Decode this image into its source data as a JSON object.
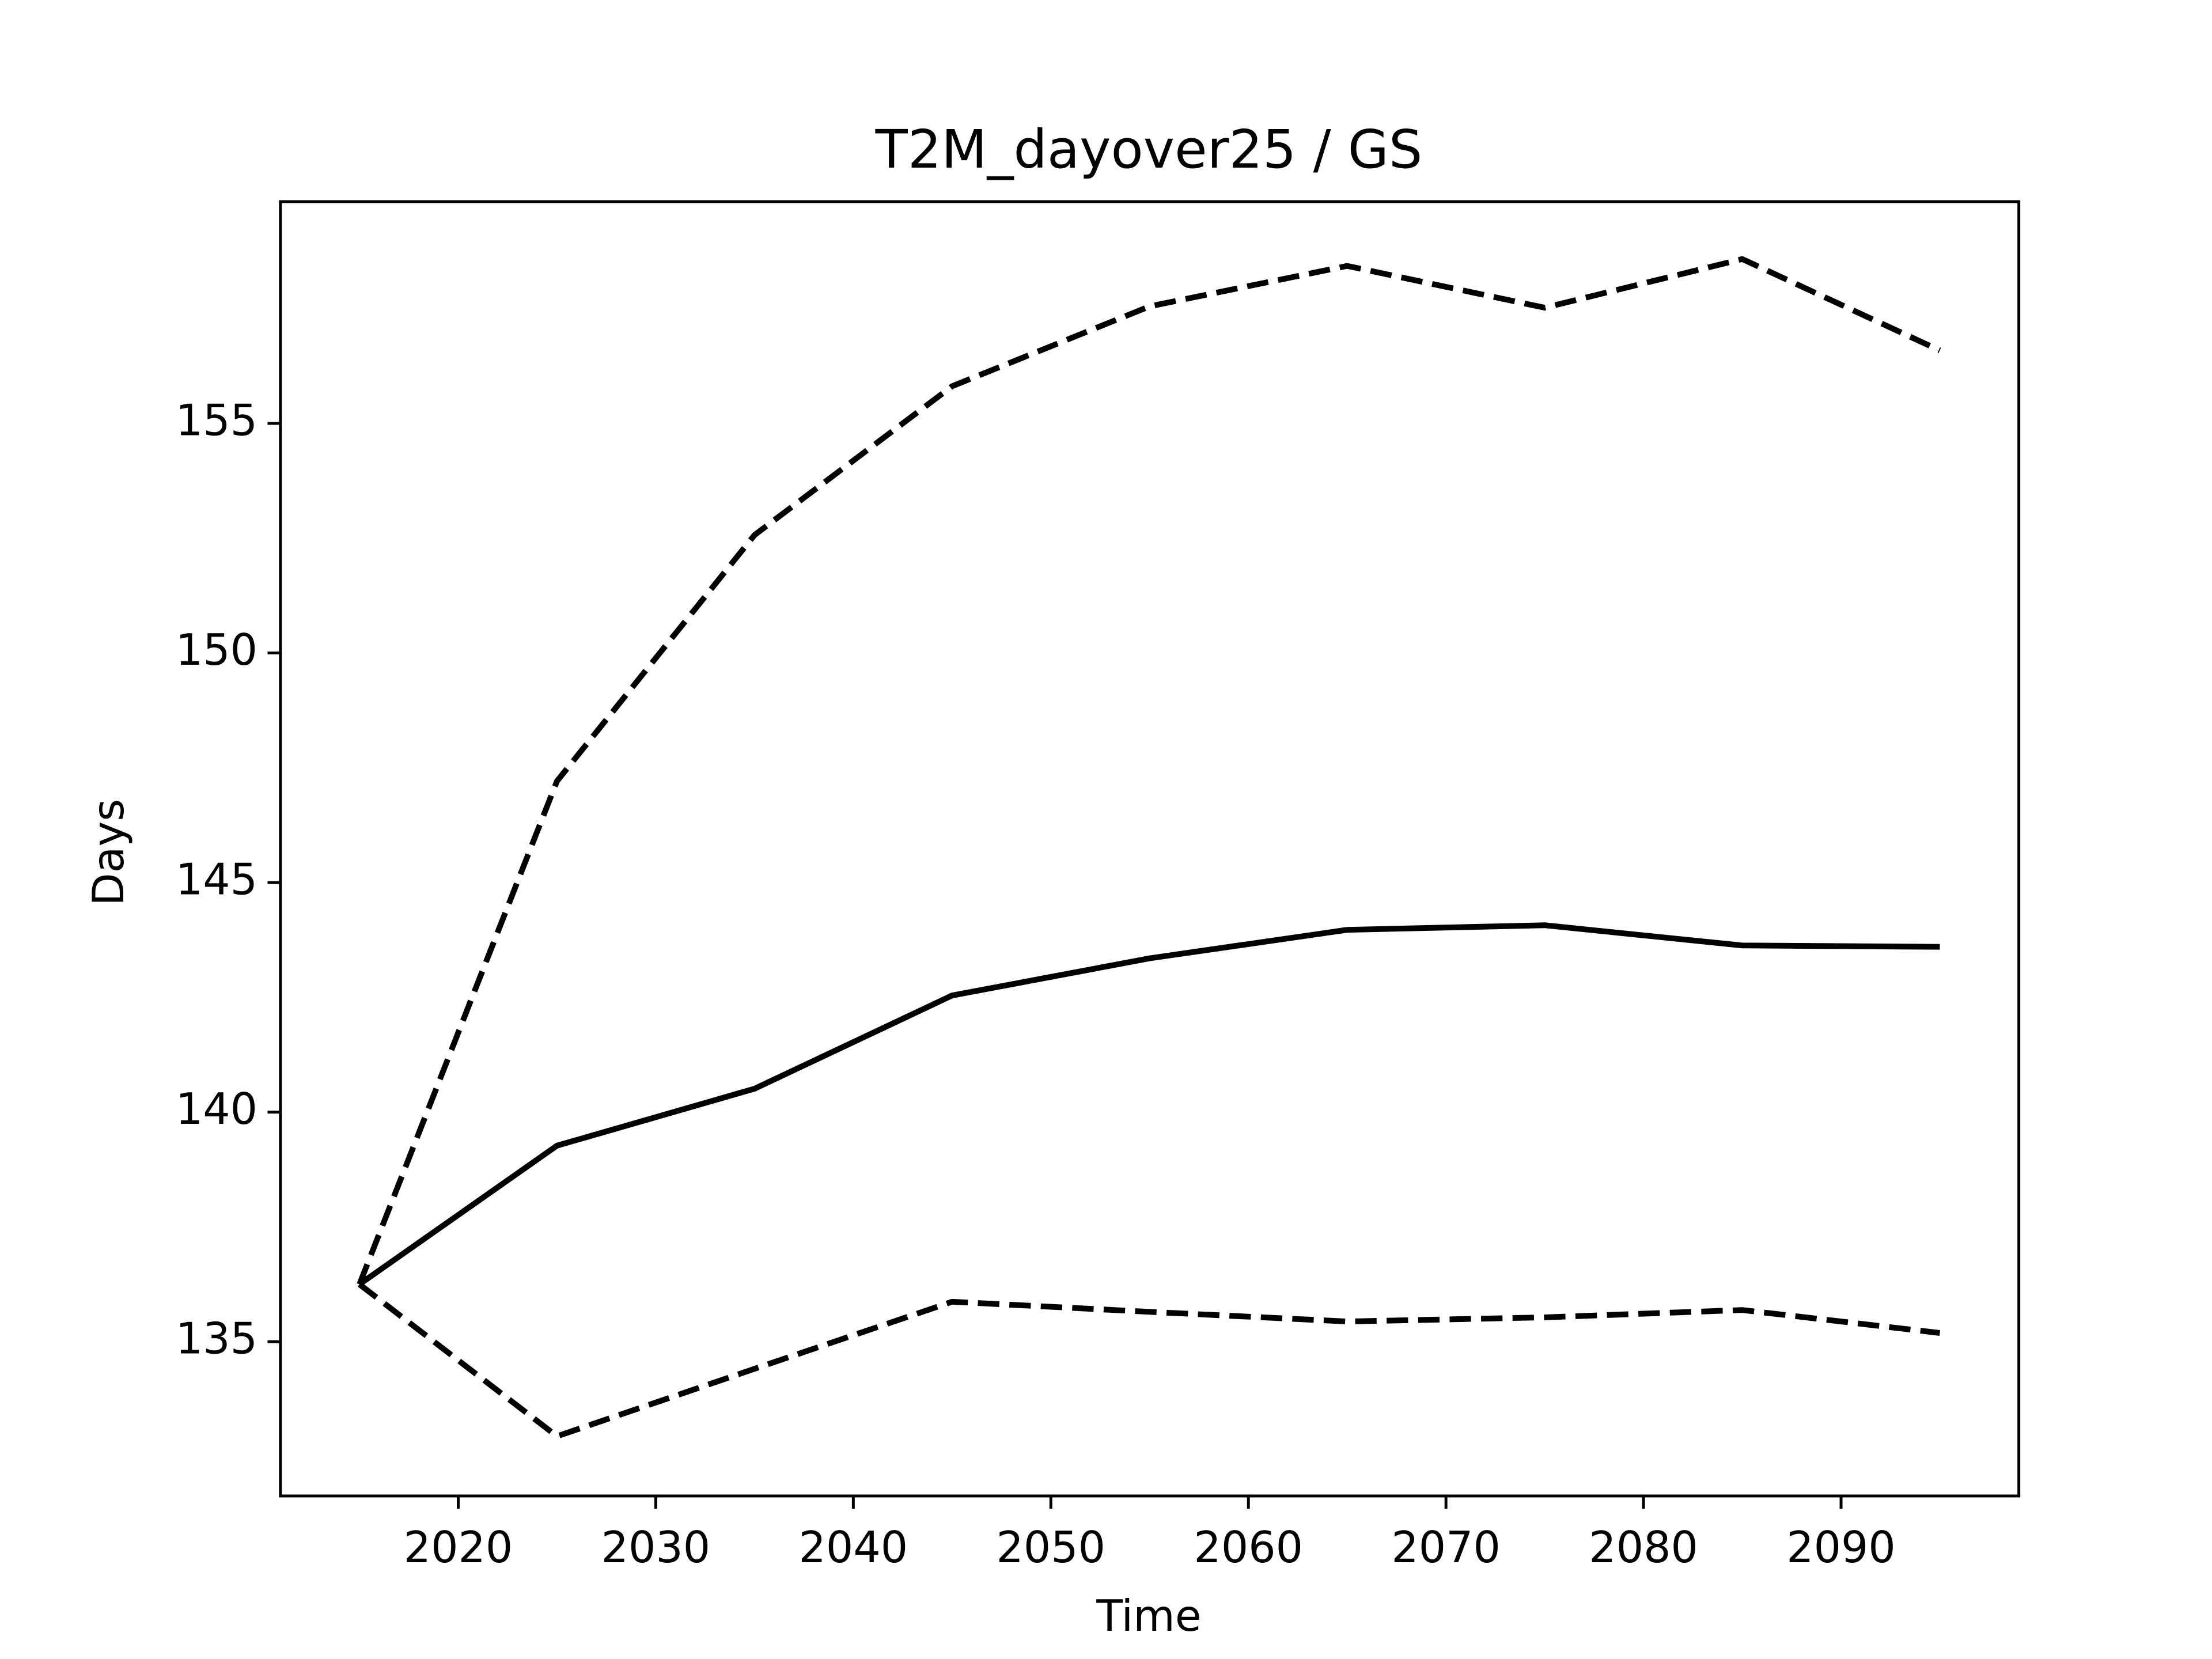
{
  "chart_data": {
    "type": "line",
    "title": "T2M_dayover25 / GS",
    "x_label": "Time",
    "y_label": "Days",
    "x": [
      2015,
      2025,
      2035,
      2045,
      2055,
      2065,
      2075,
      2085,
      2095
    ],
    "series": [
      {
        "color": "#000000",
        "dash": false,
        "values": [
          136.25,
          139.27,
          140.51,
          142.54,
          143.35,
          143.97,
          144.07,
          143.63,
          143.6
        ]
      },
      {
        "color": "#000000",
        "dash": true,
        "values": [
          136.25,
          147.21,
          152.57,
          155.81,
          157.55,
          158.43,
          157.52,
          158.58,
          156.59
        ]
      },
      {
        "color": "#000000",
        "dash": true,
        "values": [
          136.25,
          132.94,
          134.41,
          135.87,
          135.65,
          135.44,
          135.53,
          135.69,
          135.19
        ]
      }
    ],
    "xlim": [
      2011,
      2099
    ],
    "ylim": [
      131.64,
      159.83
    ],
    "xticks": [
      2020,
      2030,
      2040,
      2050,
      2060,
      2070,
      2080,
      2090
    ],
    "yticks": [
      135,
      140,
      145,
      150,
      155
    ],
    "grid": false
  }
}
